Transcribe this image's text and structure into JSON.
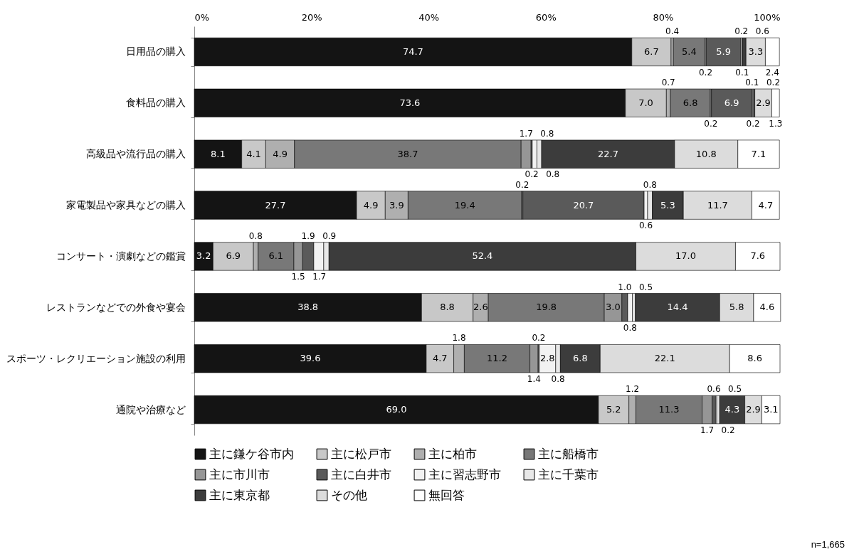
{
  "chart_data": {
    "type": "bar",
    "orientation": "horizontal",
    "stacked": true,
    "legend": "bottom",
    "categories": [
      "日用品の購入",
      "食料品の購入",
      "高級品や流行品の購入",
      "家電製品や家具などの購入",
      "コンサート・演劇などの鑑賞",
      "レストランなどでの外食や宴会",
      "スポーツ・レクリエーション施設の利用",
      "通院や治療など"
    ],
    "xlim": [
      0,
      100
    ],
    "xticks": [
      {
        "value": 0,
        "label": "0%"
      },
      {
        "value": 20,
        "label": "20%"
      },
      {
        "value": 40,
        "label": "40%"
      },
      {
        "value": 60,
        "label": "60%"
      },
      {
        "value": 80,
        "label": "80%"
      },
      {
        "value": 100,
        "label": "100%"
      }
    ],
    "series": [
      {
        "name": "主に鎌ケ谷市内",
        "color": "#141414",
        "values": [
          74.7,
          73.6,
          8.1,
          27.7,
          3.2,
          38.8,
          39.6,
          69.0
        ],
        "value_labels": [
          "74.7",
          "73.6",
          "8.1",
          "27.7",
          "3.2",
          "38.8",
          "39.6",
          "69.0"
        ]
      },
      {
        "name": "主に松戸市",
        "color": "#c8c8c8",
        "values": [
          6.7,
          7.0,
          4.1,
          4.9,
          6.9,
          8.8,
          4.7,
          5.2
        ],
        "value_labels": [
          "6.7",
          "7.0",
          "4.1",
          "4.9",
          "6.9",
          "8.8",
          "4.7",
          "5.2"
        ]
      },
      {
        "name": "主に柏市",
        "color": "#afafaf",
        "values": [
          0.4,
          0.7,
          4.9,
          3.9,
          0.8,
          2.6,
          1.8,
          1.2
        ],
        "value_labels": [
          "0.4",
          "0.7",
          "4.9",
          "3.9",
          "0.8",
          "2.6",
          "1.8",
          "1.2"
        ]
      },
      {
        "name": "主に船橋市",
        "color": "#787878",
        "values": [
          5.4,
          6.8,
          38.7,
          19.4,
          6.1,
          19.8,
          11.2,
          11.3
        ],
        "value_labels": [
          "5.4",
          "6.8",
          "38.7",
          "19.4",
          "6.1",
          "19.8",
          "11.2",
          "11.3"
        ]
      },
      {
        "name": "主に市川市",
        "color": "#969696",
        "values": [
          0.2,
          0.2,
          1.7,
          0.2,
          1.5,
          3.0,
          1.4,
          1.7
        ],
        "value_labels": [
          "0.2",
          "0.2",
          "1.7",
          "0.2",
          "1.5",
          "3.0",
          "1.4",
          "1.7"
        ]
      },
      {
        "name": "主に白井市",
        "color": "#5a5a5a",
        "values": [
          5.9,
          6.9,
          0.2,
          20.7,
          1.9,
          1.0,
          0.2,
          0.6
        ],
        "value_labels": [
          "5.9",
          "6.9",
          "0.2",
          "20.7",
          "1.9",
          "1.0",
          "0.2",
          "0.6"
        ]
      },
      {
        "name": "主に習志野市",
        "color": "#f2f2f2",
        "values": [
          0.2,
          0.1,
          0.8,
          0.6,
          1.7,
          0.8,
          2.8,
          0.2
        ],
        "value_labels": [
          "0.2",
          "0.1",
          "0.8",
          "0.6",
          "1.7",
          "0.8",
          "2.8",
          "0.2"
        ]
      },
      {
        "name": "主に千葉市",
        "color": "#e8e8e8",
        "values": [
          0.1,
          0.2,
          0.8,
          0.8,
          0.9,
          0.5,
          0.8,
          0.5
        ],
        "value_labels": [
          "0.1",
          "0.2",
          "0.8",
          "0.8",
          "0.9",
          "0.5",
          "0.8",
          "0.5"
        ]
      },
      {
        "name": "主に東京都",
        "color": "#3c3c3c",
        "values": [
          0.6,
          0.2,
          22.7,
          5.3,
          52.4,
          14.4,
          6.8,
          4.3
        ],
        "value_labels": [
          "0.6",
          "0.2",
          "22.7",
          "5.3",
          "52.4",
          "14.4",
          "6.8",
          "4.3"
        ]
      },
      {
        "name": "その他",
        "color": "#dcdcdc",
        "values": [
          3.3,
          2.9,
          10.8,
          11.7,
          17.0,
          5.8,
          22.1,
          2.9
        ],
        "value_labels": [
          "3.3",
          "2.9",
          "10.8",
          "11.7",
          "17.0",
          "5.8",
          "22.1",
          "2.9"
        ]
      },
      {
        "name": "無回答",
        "color": "#ffffff",
        "values": [
          2.4,
          1.3,
          7.1,
          4.7,
          7.6,
          4.6,
          8.6,
          3.1
        ],
        "value_labels": [
          "2.4",
          "1.3",
          "7.1",
          "4.7",
          "7.6",
          "4.6",
          "8.6",
          "3.1"
        ]
      }
    ],
    "annotations": [
      "n=1,665"
    ]
  }
}
